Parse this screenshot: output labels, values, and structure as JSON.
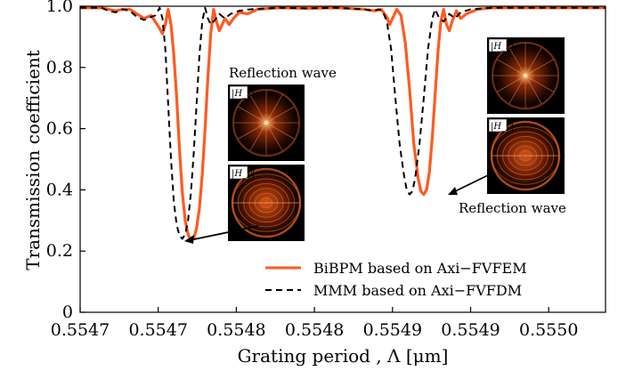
{
  "chart_data": {
    "type": "line",
    "xlabel": "Grating period , Λ [μm]",
    "ylabel": "Transmission coefficient",
    "xlim": [
      0.55465,
      0.55502
    ],
    "ylim": [
      0,
      1.0
    ],
    "x_ticks": [
      0.55465,
      0.554705,
      0.55476,
      0.554815,
      0.55487,
      0.554925,
      0.55498
    ],
    "x_tick_labels": [
      "0.5547",
      "0.5547",
      "0.5548",
      "0.5548",
      "0.5549",
      "0.5549",
      "0.5550"
    ],
    "y_ticks": [
      0,
      0.2,
      0.4,
      0.6,
      0.8,
      1.0
    ],
    "y_tick_labels": [
      "0",
      "0.2",
      "0.4",
      "0.6",
      "0.8",
      "1.0"
    ],
    "legend_position": "lower-right",
    "colors": {
      "bibpm": "#ff5a1f",
      "mmm": "#000000"
    },
    "series": [
      {
        "name": "BiBPM based on Axi−FVFEM",
        "style": "solid",
        "points": [
          [
            0.55465,
            0.995
          ],
          [
            0.554665,
            0.995
          ],
          [
            0.55467,
            0.99
          ],
          [
            0.554675,
            0.985
          ],
          [
            0.55468,
            0.99
          ],
          [
            0.554685,
            0.99
          ],
          [
            0.55469,
            0.975
          ],
          [
            0.554695,
            0.96
          ],
          [
            0.5547,
            0.97
          ],
          [
            0.554705,
            0.935
          ],
          [
            0.554708,
            0.91
          ],
          [
            0.55471,
            0.94
          ],
          [
            0.554712,
            0.99
          ],
          [
            0.554714,
            0.94
          ],
          [
            0.554716,
            0.84
          ],
          [
            0.554718,
            0.7
          ],
          [
            0.55472,
            0.53
          ],
          [
            0.554722,
            0.39
          ],
          [
            0.554724,
            0.3
          ],
          [
            0.554726,
            0.255
          ],
          [
            0.554728,
            0.235
          ],
          [
            0.55473,
            0.24
          ],
          [
            0.554732,
            0.275
          ],
          [
            0.554734,
            0.34
          ],
          [
            0.554736,
            0.45
          ],
          [
            0.554738,
            0.6
          ],
          [
            0.55474,
            0.77
          ],
          [
            0.554742,
            0.91
          ],
          [
            0.554744,
            0.99
          ],
          [
            0.554746,
            0.95
          ],
          [
            0.554748,
            0.92
          ],
          [
            0.55475,
            0.94
          ],
          [
            0.554752,
            0.96
          ],
          [
            0.554755,
            0.94
          ],
          [
            0.554758,
            0.96
          ],
          [
            0.554762,
            0.98
          ],
          [
            0.554768,
            0.975
          ],
          [
            0.554775,
            0.99
          ],
          [
            0.55479,
            0.995
          ],
          [
            0.55481,
            0.993
          ],
          [
            0.55483,
            0.995
          ],
          [
            0.55485,
            0.99
          ],
          [
            0.554858,
            0.985
          ],
          [
            0.554862,
            0.99
          ],
          [
            0.554866,
            0.965
          ],
          [
            0.554868,
            0.94
          ],
          [
            0.55487,
            0.96
          ],
          [
            0.554873,
            0.99
          ],
          [
            0.554876,
            0.97
          ],
          [
            0.554879,
            0.88
          ],
          [
            0.554882,
            0.73
          ],
          [
            0.554885,
            0.55
          ],
          [
            0.554888,
            0.44
          ],
          [
            0.55489,
            0.395
          ],
          [
            0.554892,
            0.385
          ],
          [
            0.554894,
            0.4
          ],
          [
            0.554896,
            0.46
          ],
          [
            0.554898,
            0.57
          ],
          [
            0.5549,
            0.71
          ],
          [
            0.554902,
            0.85
          ],
          [
            0.554904,
            0.95
          ],
          [
            0.554906,
            0.99
          ],
          [
            0.554908,
            0.94
          ],
          [
            0.55491,
            0.92
          ],
          [
            0.554912,
            0.95
          ],
          [
            0.554915,
            0.985
          ],
          [
            0.554918,
            0.96
          ],
          [
            0.554922,
            0.975
          ],
          [
            0.55493,
            0.99
          ],
          [
            0.55494,
            0.995
          ],
          [
            0.55496,
            0.995
          ],
          [
            0.55498,
            0.995
          ],
          [
            0.55502,
            0.995
          ]
        ]
      },
      {
        "name": "MMM based on Axi−FVFDM",
        "style": "dashed",
        "points": [
          [
            0.55465,
            0.995
          ],
          [
            0.554665,
            0.995
          ],
          [
            0.55467,
            0.985
          ],
          [
            0.554675,
            0.98
          ],
          [
            0.55468,
            0.99
          ],
          [
            0.554685,
            0.985
          ],
          [
            0.55469,
            0.965
          ],
          [
            0.554695,
            0.955
          ],
          [
            0.5547,
            0.965
          ],
          [
            0.554703,
            0.97
          ],
          [
            0.554706,
            0.995
          ],
          [
            0.554708,
            0.96
          ],
          [
            0.55471,
            0.86
          ],
          [
            0.554712,
            0.68
          ],
          [
            0.554714,
            0.5
          ],
          [
            0.554716,
            0.36
          ],
          [
            0.554718,
            0.285
          ],
          [
            0.55472,
            0.25
          ],
          [
            0.554722,
            0.24
          ],
          [
            0.554724,
            0.255
          ],
          [
            0.554726,
            0.3
          ],
          [
            0.554728,
            0.39
          ],
          [
            0.55473,
            0.52
          ],
          [
            0.554732,
            0.68
          ],
          [
            0.554734,
            0.84
          ],
          [
            0.554736,
            0.95
          ],
          [
            0.554738,
            0.995
          ],
          [
            0.55474,
            0.96
          ],
          [
            0.554742,
            0.94
          ],
          [
            0.554745,
            0.955
          ],
          [
            0.554748,
            0.975
          ],
          [
            0.554752,
            0.96
          ],
          [
            0.554756,
            0.975
          ],
          [
            0.554762,
            0.985
          ],
          [
            0.55477,
            0.99
          ],
          [
            0.55479,
            0.995
          ],
          [
            0.55481,
            0.993
          ],
          [
            0.55483,
            0.995
          ],
          [
            0.55485,
            0.99
          ],
          [
            0.554856,
            0.985
          ],
          [
            0.55486,
            0.99
          ],
          [
            0.554863,
            0.985
          ],
          [
            0.554866,
            0.95
          ],
          [
            0.554869,
            0.86
          ],
          [
            0.554872,
            0.7
          ],
          [
            0.554875,
            0.55
          ],
          [
            0.554878,
            0.45
          ],
          [
            0.55488,
            0.4
          ],
          [
            0.554882,
            0.385
          ],
          [
            0.554884,
            0.395
          ],
          [
            0.554886,
            0.44
          ],
          [
            0.554889,
            0.55
          ],
          [
            0.554892,
            0.7
          ],
          [
            0.554895,
            0.86
          ],
          [
            0.554898,
            0.96
          ],
          [
            0.5549,
            0.99
          ],
          [
            0.554903,
            0.96
          ],
          [
            0.554906,
            0.95
          ],
          [
            0.55491,
            0.975
          ],
          [
            0.554914,
            0.96
          ],
          [
            0.554918,
            0.98
          ],
          [
            0.554925,
            0.99
          ],
          [
            0.55494,
            0.995
          ],
          [
            0.55496,
            0.995
          ],
          [
            0.55498,
            0.995
          ],
          [
            0.55502,
            0.995
          ]
        ]
      }
    ],
    "annotations": [
      {
        "text": "Reflection wave",
        "target": [
          0.554728,
          0.235
        ]
      },
      {
        "text": "Reflection wave",
        "target": [
          0.554892,
          0.385
        ]
      }
    ],
    "insets": [
      {
        "label": "|H_x|",
        "kind": "star"
      },
      {
        "label": "|H_y|",
        "kind": "rings"
      },
      {
        "label": "|H_x|",
        "kind": "star"
      },
      {
        "label": "|H_y|",
        "kind": "rings"
      }
    ]
  }
}
